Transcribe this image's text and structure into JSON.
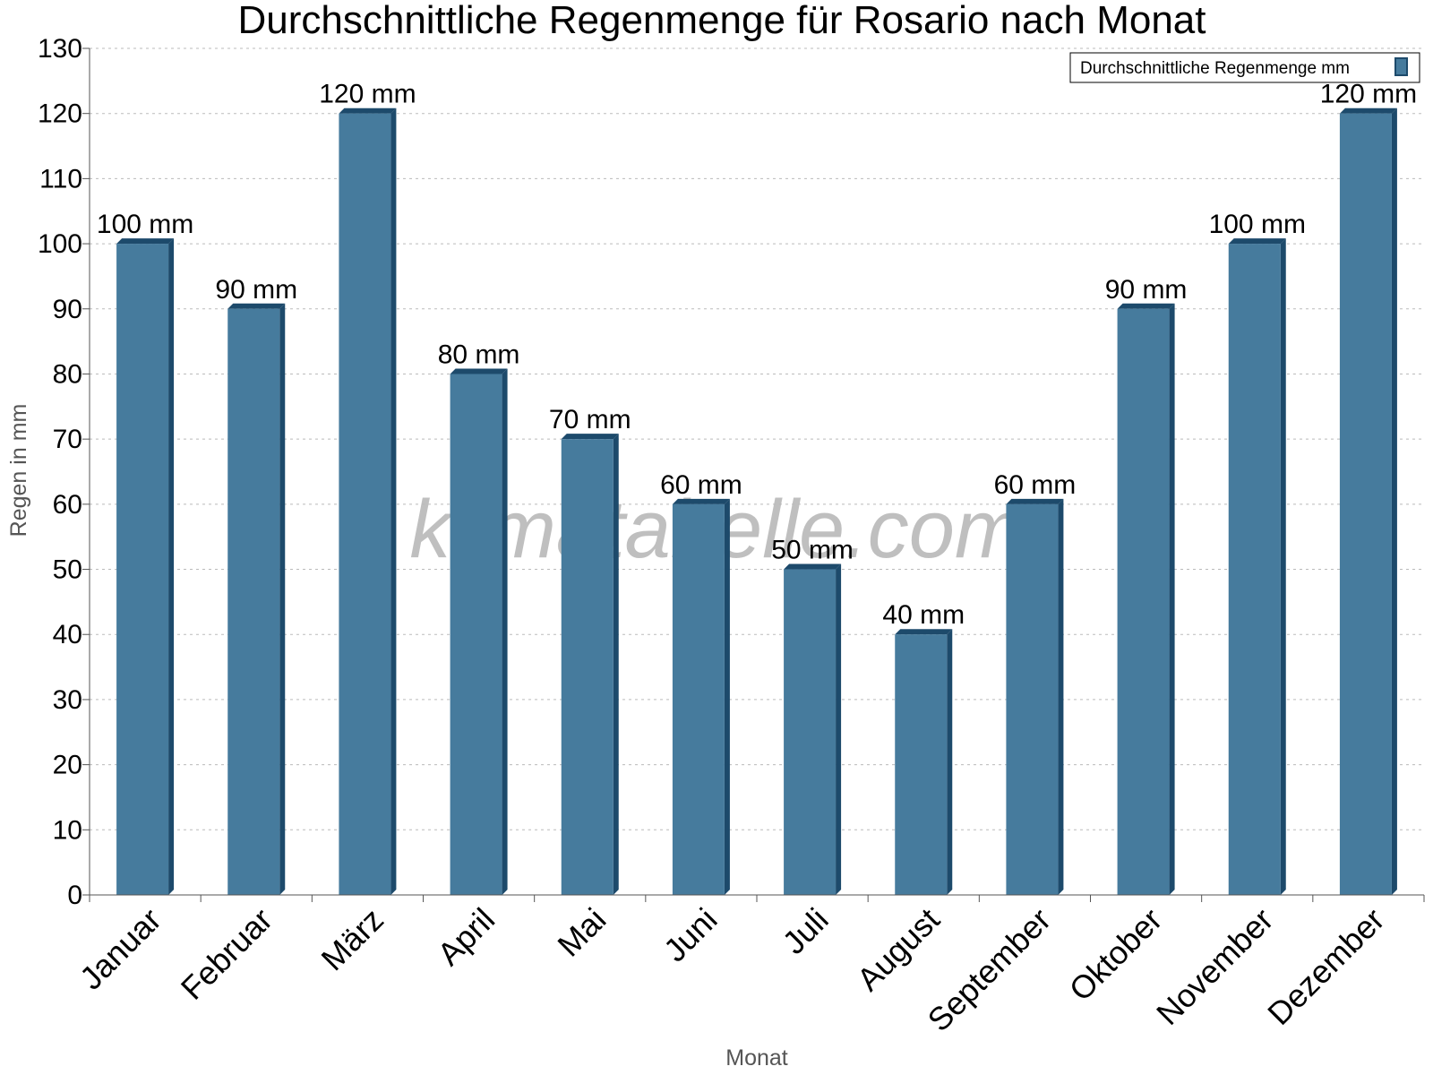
{
  "chart_data": {
    "type": "bar",
    "title": "Durchschnittliche Regenmenge für Rosario nach Monat",
    "xlabel": "Monat",
    "ylabel": "Regen in mm",
    "categories": [
      "Januar",
      "Februar",
      "März",
      "April",
      "Mai",
      "Juni",
      "Juli",
      "August",
      "September",
      "Oktober",
      "November",
      "Dezember"
    ],
    "series": [
      {
        "name": "Durchschnittliche Regenmenge mm",
        "values": [
          100,
          90,
          120,
          80,
          70,
          60,
          50,
          40,
          60,
          90,
          100,
          120
        ],
        "labels": [
          "100 mm",
          "90 mm",
          "120 mm",
          "80 mm",
          "70 mm",
          "60 mm",
          "50 mm",
          "40 mm",
          "60 mm",
          "90 mm",
          "100 mm",
          "120 mm"
        ],
        "color": "#467b9d",
        "edge_color": "#1d4a6b"
      }
    ],
    "ylim": [
      0,
      130
    ],
    "yticks": [
      0,
      10,
      20,
      30,
      40,
      50,
      60,
      70,
      80,
      90,
      100,
      110,
      120,
      130
    ],
    "grid": true,
    "legend_position": "top-right",
    "watermark": "klimatabelle.com"
  }
}
